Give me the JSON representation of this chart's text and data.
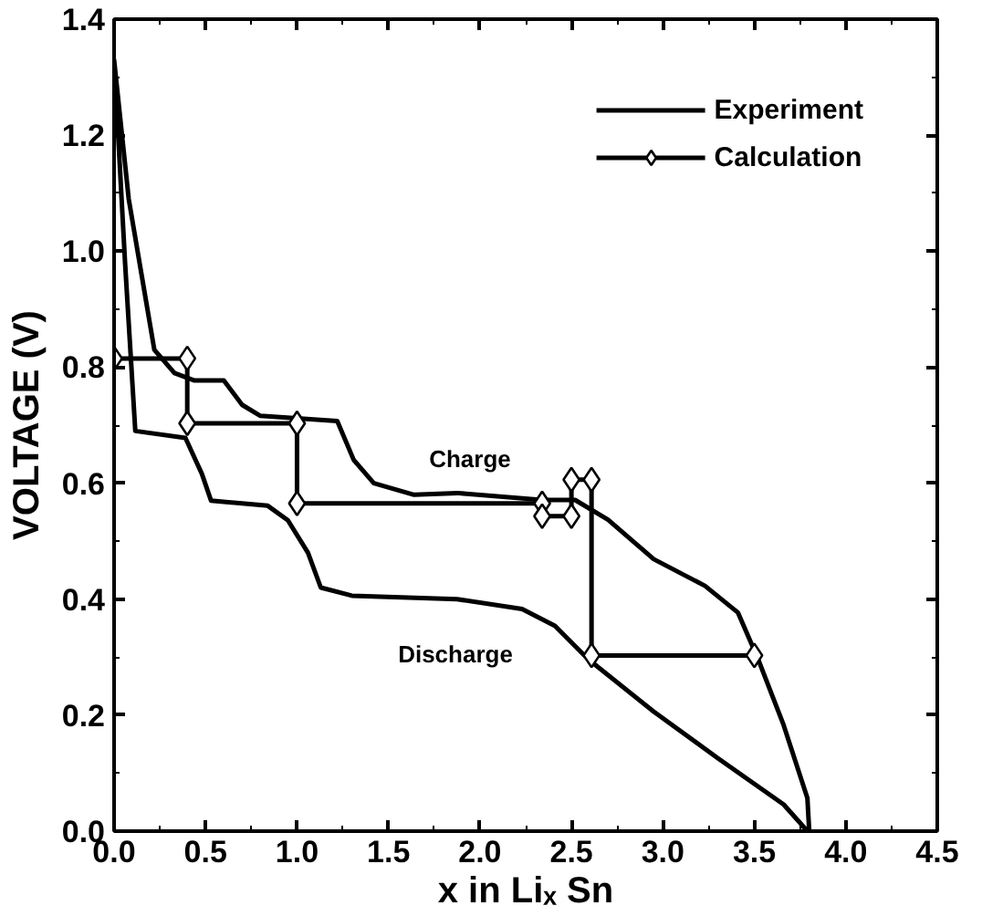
{
  "chart_data": {
    "type": "line",
    "xlabel": "x in Liₓ Sn",
    "ylabel": "VOLTAGE (V)",
    "series": [
      {
        "name": "Experiment",
        "color": "#000000",
        "marker": "none",
        "x": [
          0,
          0.06,
          0.116,
          0.39,
          0.48,
          0.53,
          0.84,
          0.95,
          1.06,
          1.13,
          1.3,
          1.875,
          2.23,
          2.41,
          2.59,
          2.95,
          3.3,
          3.66,
          3.79,
          null,
          0,
          0.08,
          0.15,
          0.22,
          0.33,
          0.44,
          0.6,
          0.7,
          0.8,
          1.22,
          1.31,
          1.42,
          1.64,
          1.875,
          2.34,
          2.52,
          2.7,
          2.95,
          3.23,
          3.41,
          3.52,
          3.66,
          3.79,
          3.8
        ],
        "values": [
          1.33,
          0.98,
          0.69,
          0.678,
          0.616,
          0.57,
          0.561,
          0.536,
          0.48,
          0.42,
          0.406,
          0.4,
          0.383,
          0.354,
          0.297,
          0.206,
          0.126,
          0.046,
          0,
          null,
          1.33,
          1.09,
          0.96,
          0.83,
          0.79,
          0.777,
          0.777,
          0.735,
          0.716,
          0.707,
          0.64,
          0.6,
          0.58,
          0.583,
          0.571,
          0.571,
          0.537,
          0.469,
          0.423,
          0.377,
          0.297,
          0.183,
          0.057,
          0
        ]
      },
      {
        "name": "Calculation",
        "color": "#000000",
        "marker": "diamond",
        "x": [
          0,
          0.4,
          0.4,
          1.0,
          1.0,
          2.34,
          2.34,
          2.5,
          2.5,
          2.61,
          2.61,
          3.5
        ],
        "values": [
          0.815,
          0.815,
          0.703,
          0.703,
          0.565,
          0.565,
          0.543,
          0.543,
          0.606,
          0.606,
          0.303,
          0.303
        ]
      }
    ],
    "annotations": [
      "Charge",
      "Discharge"
    ],
    "xlim": [
      0,
      4.5
    ],
    "ylim": [
      0,
      1.4
    ],
    "xticks": [
      {
        "value": 0,
        "label": "0.0"
      },
      0.5,
      {
        "value": 1,
        "label": "1.0"
      },
      1.5,
      {
        "value": 2,
        "label": "2.0"
      },
      2.5,
      {
        "value": 3,
        "label": "3.0"
      },
      3.5,
      {
        "value": 4,
        "label": "4.0"
      },
      4.5
    ],
    "yticks": [
      {
        "value": 0,
        "label": "0.0"
      },
      0.2,
      0.4,
      0.6,
      0.8,
      {
        "value": 1,
        "label": "1.0"
      },
      1.2,
      1.4
    ],
    "grid": false,
    "legend": "top right",
    "line_style": "solid"
  }
}
